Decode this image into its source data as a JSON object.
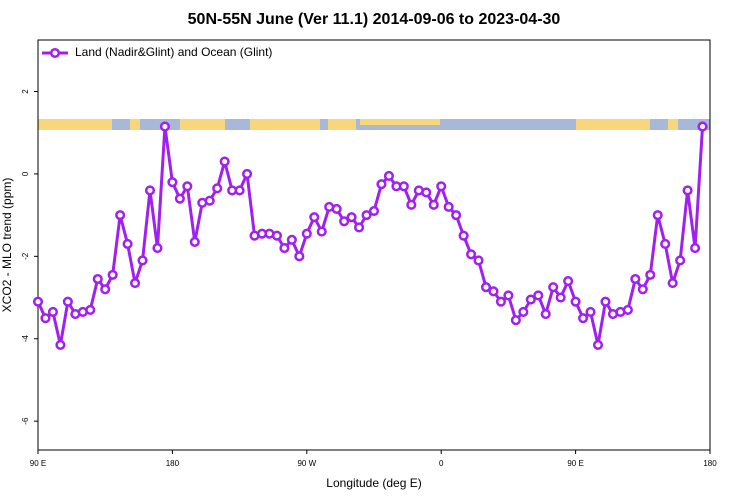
{
  "chart_data": {
    "type": "line",
    "title": "50N-55N June (Ver 11.1)   2014-09-06 to 2023-04-30",
    "xlabel": "Longitude (deg E)",
    "ylabel": "XCO2 - MLO trend (ppm)",
    "xlim": [
      90,
      540
    ],
    "ylim": [
      -6.7,
      3.25
    ],
    "xticks": [
      {
        "value": 90,
        "label": "90 E"
      },
      180,
      {
        "value": 270,
        "label": "90 W"
      },
      {
        "value": 360,
        "label": "0"
      },
      {
        "value": 450,
        "label": "90 E"
      },
      {
        "value": 540,
        "label": "180"
      }
    ],
    "yticks": [
      -6,
      -4,
      -2,
      0,
      2
    ],
    "legend": "top-left",
    "x": [
      90,
      95,
      100,
      105,
      110,
      115,
      120,
      125,
      130,
      135,
      140,
      145,
      150,
      155,
      160,
      165,
      170,
      175,
      180,
      185,
      190,
      195,
      200,
      205,
      210,
      215,
      220,
      225,
      230,
      235,
      240,
      245,
      250,
      255,
      260,
      265,
      270,
      275,
      280,
      285,
      290,
      295,
      300,
      305,
      310,
      315,
      320,
      325,
      330,
      335,
      340,
      345,
      350,
      355,
      360,
      365,
      370,
      375,
      380,
      385,
      390,
      395,
      400,
      405,
      410,
      415,
      420,
      425,
      430,
      435,
      440,
      445,
      450,
      455,
      460,
      465,
      470,
      475,
      480,
      485,
      490,
      495,
      500,
      505,
      510,
      515,
      520,
      525,
      530,
      535
    ],
    "series": [
      {
        "name": "Land (Nadir&Glint) and Ocean (Glint)",
        "color": "#a020f0",
        "values": [
          -3.1,
          -3.5,
          -3.35,
          -4.15,
          -3.1,
          -3.4,
          -3.35,
          -3.3,
          -2.55,
          -2.8,
          -2.45,
          -1.0,
          -1.7,
          -2.65,
          -2.1,
          -0.4,
          -1.8,
          1.15,
          -0.2,
          -0.6,
          -0.3,
          -1.65,
          -0.7,
          -0.65,
          -0.35,
          0.3,
          -0.4,
          -0.4,
          0.0,
          -1.5,
          -1.45,
          -1.45,
          -1.5,
          -1.8,
          -1.6,
          -2.0,
          -1.45,
          -1.05,
          -1.4,
          -0.8,
          -0.85,
          -1.15,
          -1.05,
          -1.3,
          -1.0,
          -0.9,
          -0.25,
          -0.05,
          -0.3,
          -0.3,
          -0.75,
          -0.4,
          -0.45,
          -0.75,
          -0.3,
          -0.8,
          -1.0,
          -1.5,
          -1.95,
          -2.1,
          -2.75,
          -2.85,
          -3.1,
          -2.95,
          -3.55,
          -3.35,
          -3.05,
          -2.95,
          -3.4,
          -2.75,
          -3.0,
          -2.6,
          -3.1,
          -3.5,
          -3.35,
          -4.15,
          -3.1,
          -3.4,
          -3.35,
          -3.3,
          -2.55,
          -2.8,
          -2.45,
          -1.0,
          -1.7,
          -2.65,
          -2.1,
          -0.4,
          -1.8,
          1.15
        ]
      }
    ]
  }
}
